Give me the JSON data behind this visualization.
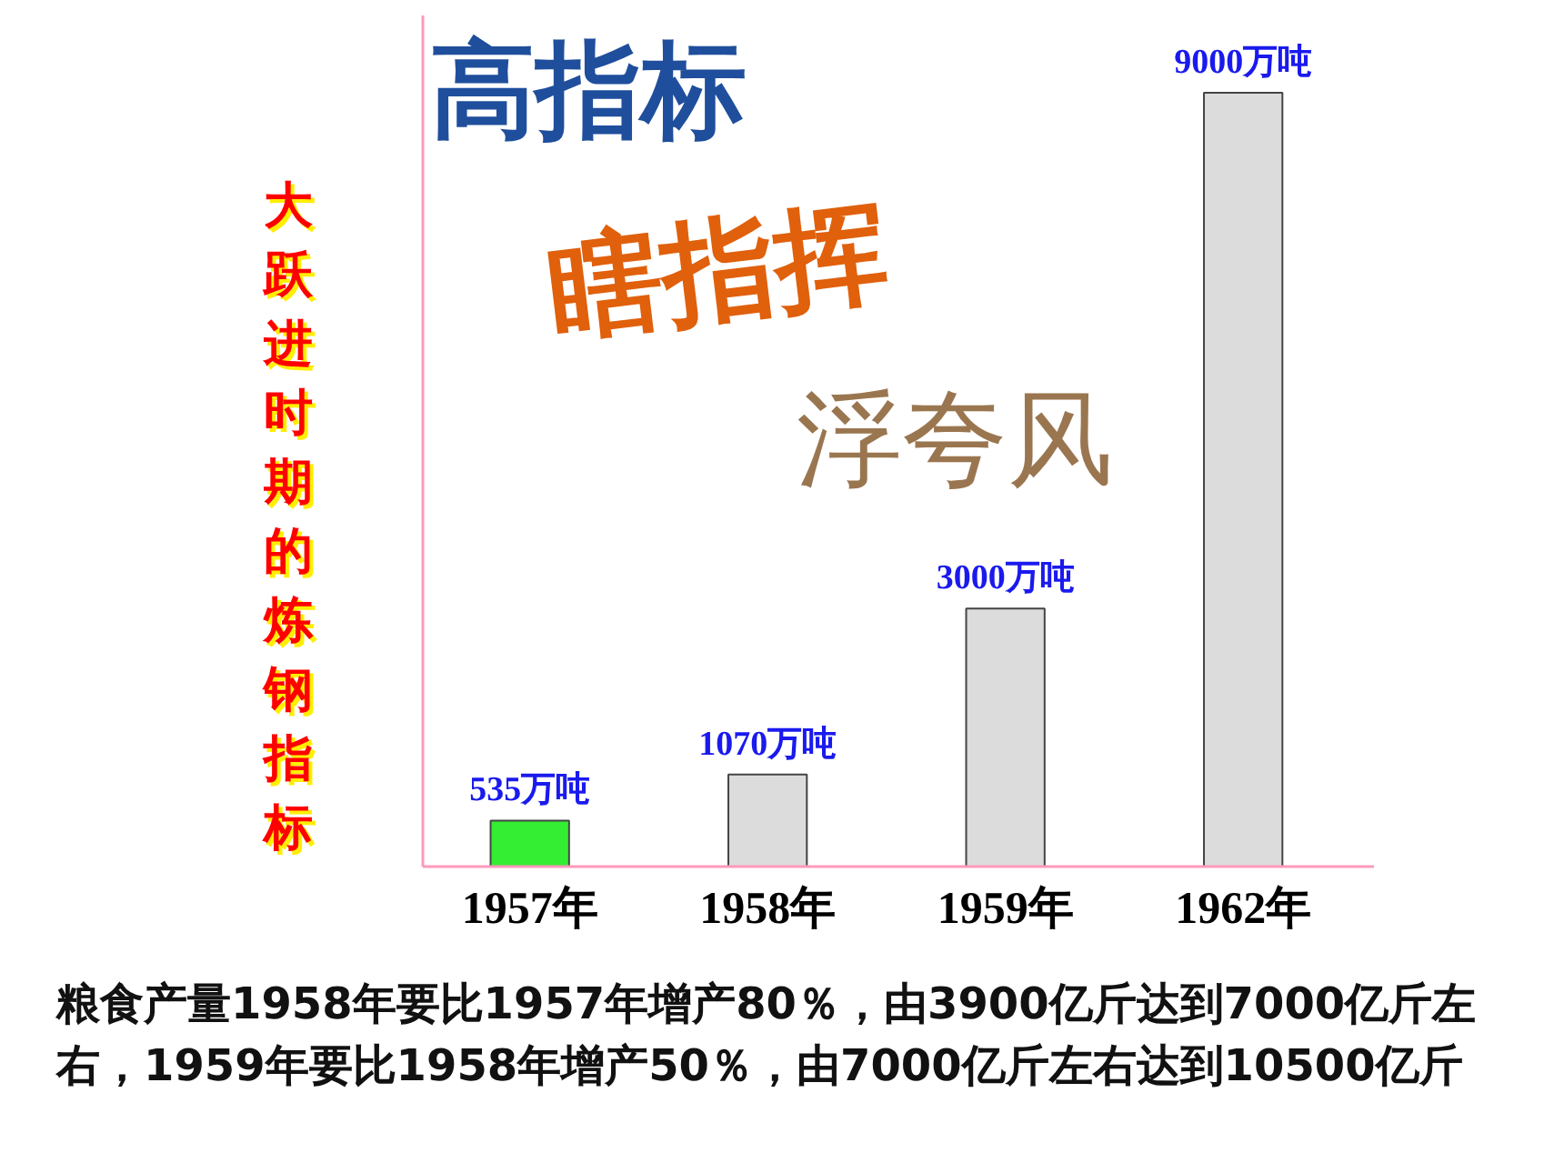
{
  "chart_data": {
    "type": "bar",
    "title": "高指标",
    "ylabel": "大跃进时期的炼钢指标",
    "categories": [
      "1957年",
      "1958年",
      "1959年",
      "1962年"
    ],
    "values": [
      535,
      1070,
      3000,
      9000
    ],
    "colors": [
      "#33ee33",
      "#dcdcdc",
      "#dcdcdc",
      "#dcdcdc"
    ],
    "value_labels": [
      "535万吨",
      "1070万吨",
      "3000万吨",
      "9000万吨"
    ],
    "tick_labels": "x",
    "annotations": [
      "瞎指挥",
      "浮夸风",
      "粮食产量1958年要比1957年增产80％，由3900亿斤达到7000亿斤左右，1959年要比1958年增产50％，由7000亿斤左右达到10500亿斤"
    ]
  }
}
